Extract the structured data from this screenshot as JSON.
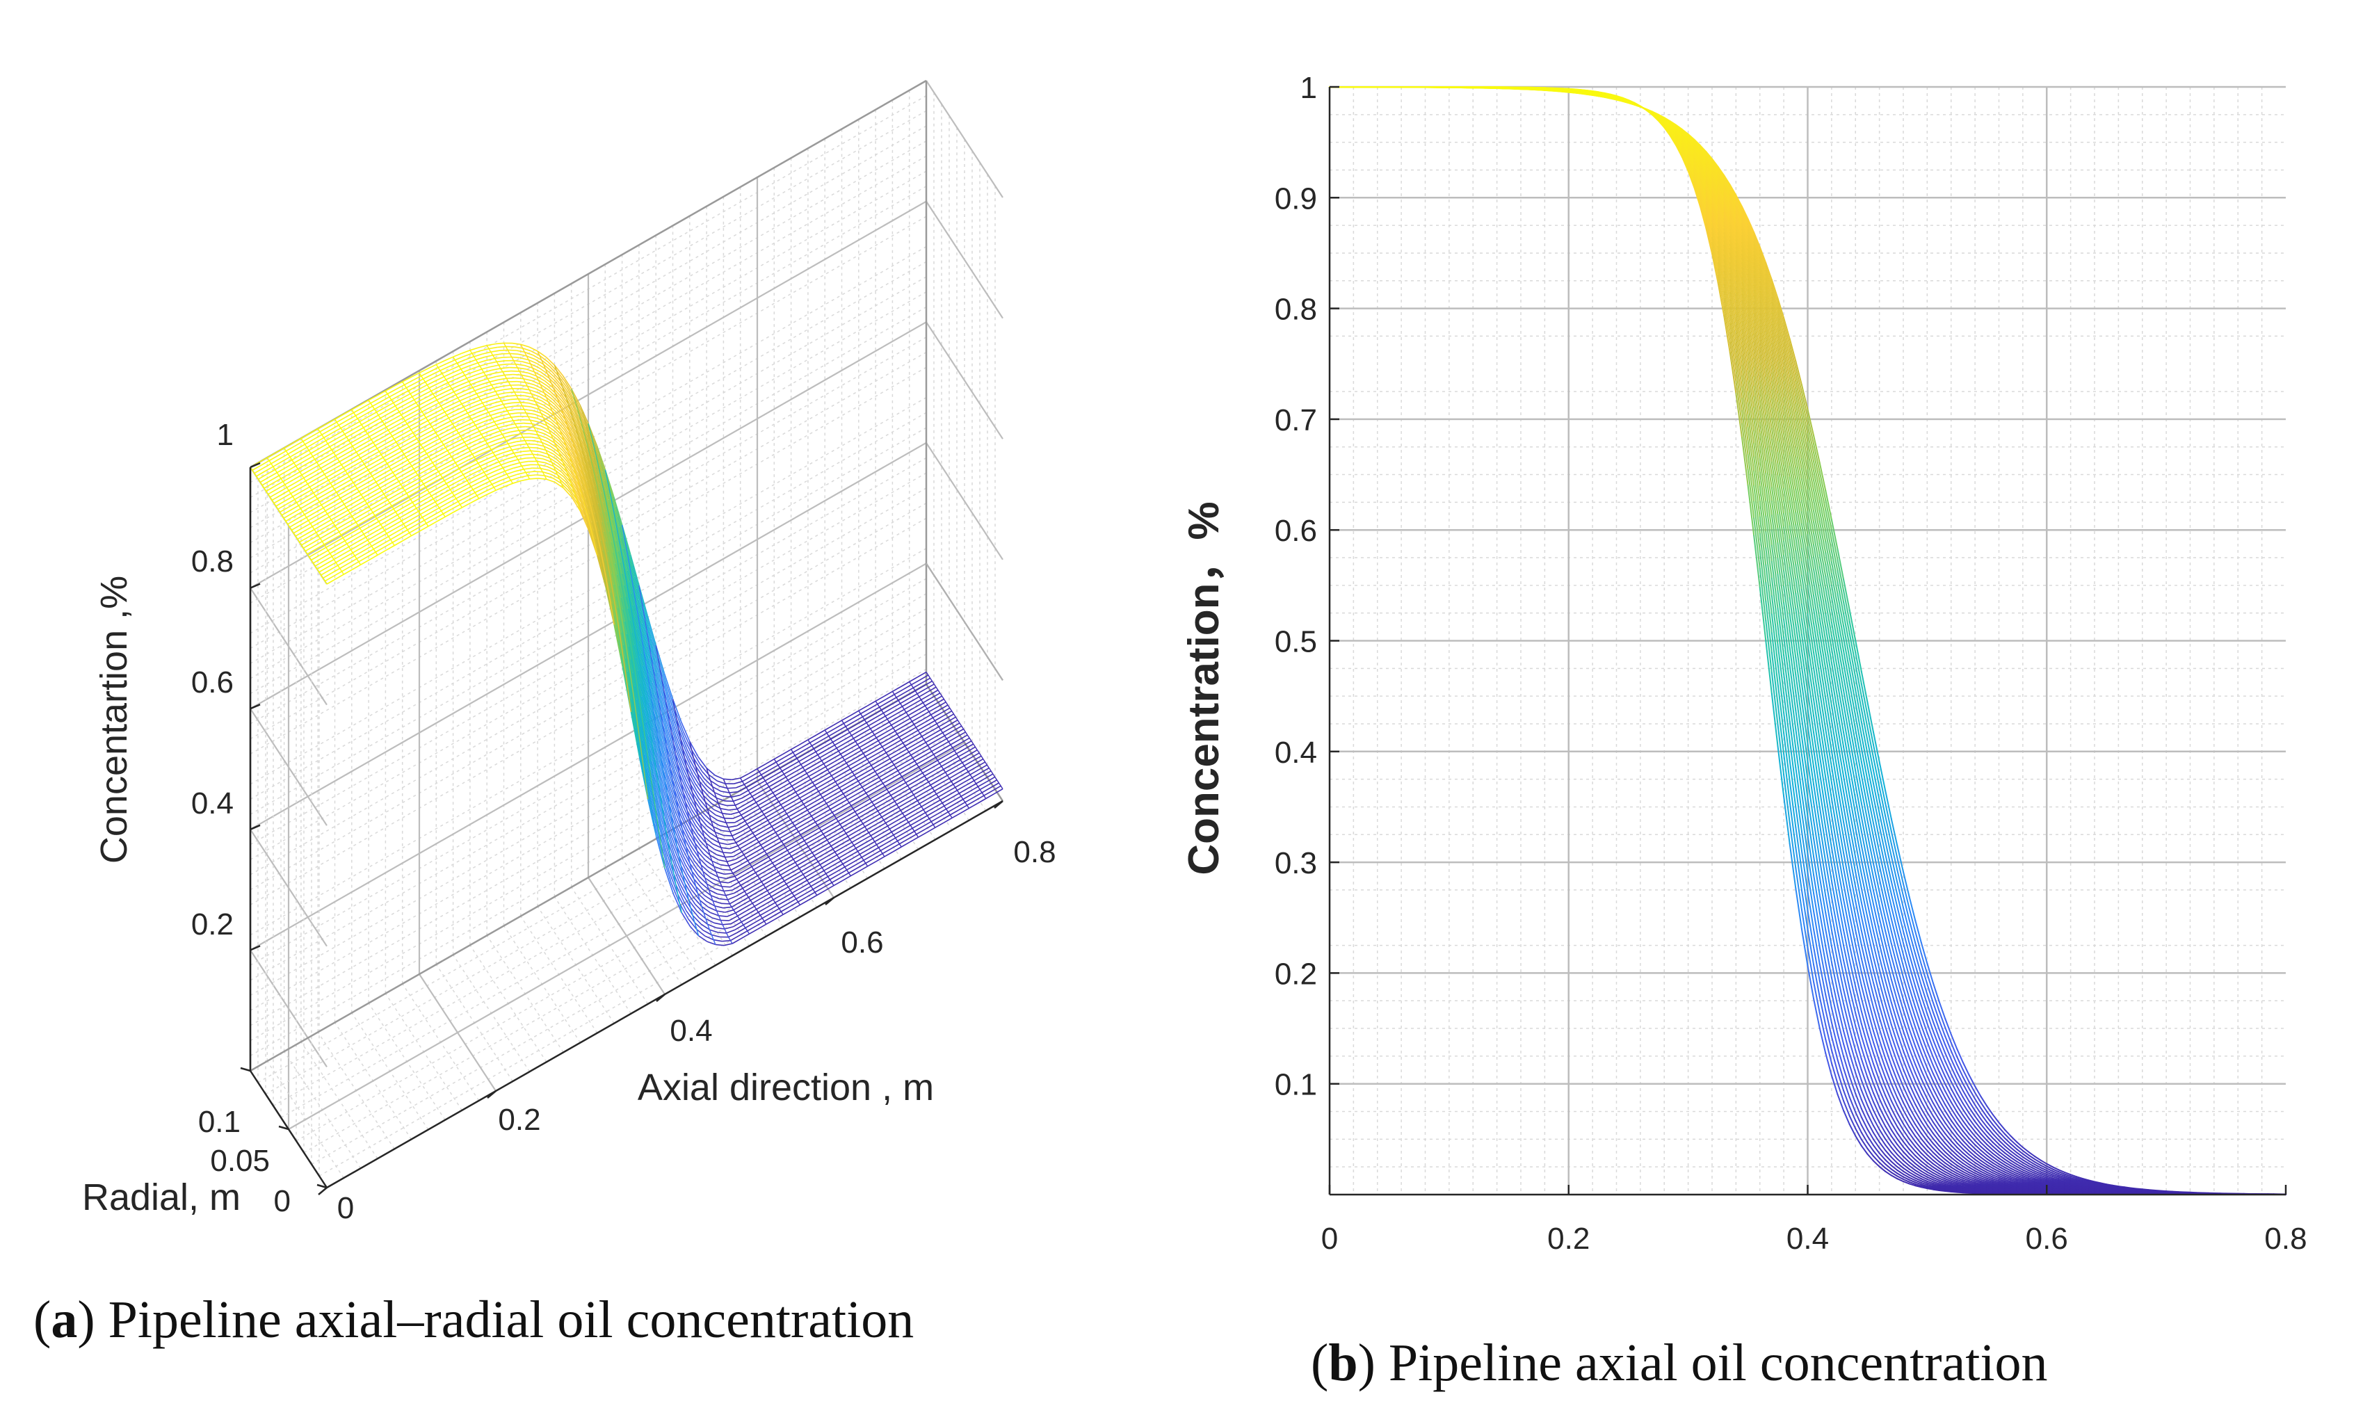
{
  "captions": {
    "a_letter": "a",
    "a_text": "Pipeline axial–radial oil concentration",
    "b_letter": "b",
    "b_text": "Pipeline axial oil concentration"
  },
  "colors": {
    "axis": "#262626",
    "grid_major": "#bdbdbd",
    "grid_minor": "#d9d9d9",
    "surface_high": "#f9fb0e",
    "surface_low": "#3e26a8"
  },
  "chart_data": [
    {
      "id": "a",
      "type": "surface",
      "title": "",
      "xlabel": "Axial direction , m",
      "ylabel": "Radial, m",
      "zlabel": "Concentartion ,%",
      "xlim": [
        0,
        0.8
      ],
      "ylim": [
        0,
        0.1
      ],
      "zlim": [
        0,
        1
      ],
      "x_ticks": [
        "0",
        "0.2",
        "0.4",
        "0.6",
        "0.8"
      ],
      "y_ticks": [
        "0",
        "0.05",
        "0.1"
      ],
      "z_ticks": [
        "0.2",
        "0.4",
        "0.6",
        "0.8",
        "1"
      ],
      "grid": true,
      "surface": {
        "radial_curves": 40,
        "front_center_at_axis": 0.36,
        "front_center_at_wall": 0.45,
        "front_width_at_axis": 0.03,
        "front_width_at_wall": 0.045,
        "trailing_dip": 0.05
      }
    },
    {
      "id": "b",
      "type": "line",
      "title": "",
      "xlabel": "",
      "ylabel": "Concentration，%",
      "xlim": [
        0,
        0.8
      ],
      "ylim": [
        0,
        1
      ],
      "x_ticks": [
        "0",
        "0.2",
        "0.4",
        "0.6",
        "0.8"
      ],
      "y_ticks": [
        "0.1",
        "0.2",
        "0.3",
        "0.4",
        "0.5",
        "0.6",
        "0.7",
        "0.8",
        "0.9",
        "1"
      ],
      "grid": true,
      "series_family": {
        "count": 40,
        "shape": "sigmoid descending",
        "midpoint_first": 0.365,
        "midpoint_last": 0.44,
        "width_first": 0.026,
        "width_last": 0.045
      }
    }
  ]
}
